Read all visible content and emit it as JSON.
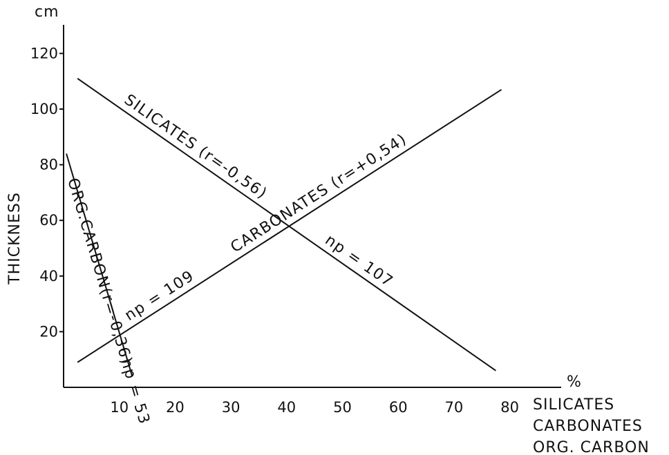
{
  "chart_data": {
    "type": "line",
    "y_unit": "cm",
    "ylabel": "THICKNESS",
    "x_unit": "%",
    "xlabel_lines": [
      "SILICATES",
      "CARBONATES",
      "ORG. CARBON"
    ],
    "xlim": [
      0,
      85
    ],
    "ylim": [
      0,
      130
    ],
    "x_ticks": [
      {
        "value": 10,
        "label": "10"
      },
      {
        "value": 20,
        "label": "20"
      },
      {
        "value": 30,
        "label": "30"
      },
      {
        "value": 40,
        "label": "40"
      },
      {
        "value": 50,
        "label": "50"
      },
      {
        "value": 60,
        "label": "60"
      },
      {
        "value": 70,
        "label": "70"
      },
      {
        "value": 80,
        "label": "80"
      }
    ],
    "y_ticks": [
      {
        "value": 20,
        "label": "20"
      },
      {
        "value": 40,
        "label": "40"
      },
      {
        "value": 60,
        "label": "60"
      },
      {
        "value": 80,
        "label": "80"
      },
      {
        "value": 100,
        "label": "100"
      },
      {
        "value": 120,
        "label": "120"
      }
    ],
    "lines": [
      {
        "key": "silicates",
        "label": "SILICATES (r=-0,56)",
        "np_label": "np = 107",
        "x": [
          2.5,
          77.5
        ],
        "y": [
          111,
          6
        ]
      },
      {
        "key": "carbonates",
        "label": "CARBONATES (r=+0,54)",
        "np_label": "np = 109",
        "x": [
          2.5,
          78.5
        ],
        "y": [
          9,
          107
        ]
      },
      {
        "key": "org-carbon",
        "label": "ORG.CARBON(r=-0,36)",
        "np_label": "np = 53",
        "x": [
          0.5,
          12.3
        ],
        "y": [
          84,
          4
        ]
      }
    ]
  }
}
